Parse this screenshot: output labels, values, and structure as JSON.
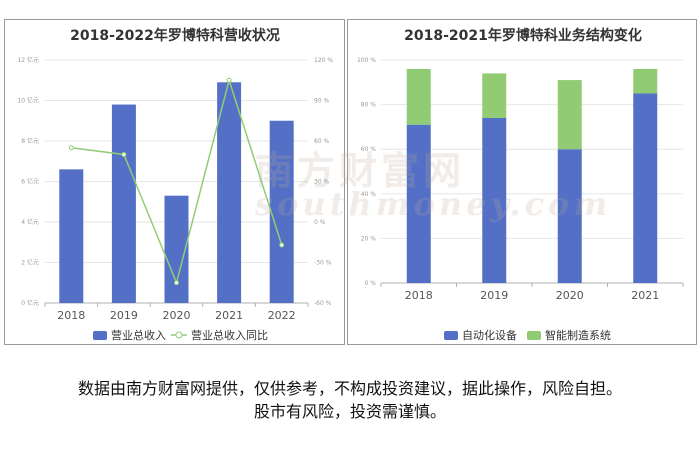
{
  "chart_data": [
    {
      "type": "bar",
      "title": "2018-2022年罗博特科营收状况",
      "categories": [
        "2018",
        "2019",
        "2020",
        "2021",
        "2022"
      ],
      "series": [
        {
          "name": "营业总收入",
          "values": [
            6.6,
            9.8,
            5.3,
            10.9,
            9.0
          ],
          "axis": "left",
          "kind": "bar"
        },
        {
          "name": "营业总收入同比",
          "values": [
            55,
            50,
            -45,
            105,
            -17
          ],
          "axis": "right",
          "kind": "line"
        }
      ],
      "y_left": {
        "ticks": [
          "0 亿元",
          "2 亿元",
          "4 亿元",
          "6 亿元",
          "8 亿元",
          "10 亿元",
          "12 亿元"
        ],
        "ylim": [
          0,
          12
        ]
      },
      "y_right": {
        "ticks": [
          "-60 %",
          "-30 %",
          "0 %",
          "30 %",
          "60 %",
          "90 %",
          "120 %"
        ],
        "ylim": [
          -60,
          120
        ]
      },
      "grid": true,
      "legend": "bottom",
      "colors": {
        "bar": "#5470c6",
        "line": "#91cc75"
      }
    },
    {
      "type": "bar",
      "stacked": true,
      "title": "2018-2021年罗博特科业务结构变化",
      "categories": [
        "2018",
        "2019",
        "2020",
        "2021"
      ],
      "series": [
        {
          "name": "自动化设备",
          "values": [
            71,
            74,
            60,
            85
          ]
        },
        {
          "name": "智能制造系统",
          "values": [
            25,
            20,
            31,
            11
          ]
        }
      ],
      "y": {
        "ticks": [
          "0 %",
          "20 %",
          "40 %",
          "60 %",
          "80 %",
          "100 %"
        ],
        "ylim": [
          0,
          100
        ]
      },
      "grid": true,
      "legend": "bottom",
      "colors": {
        "s1": "#5470c6",
        "s2": "#91cc75"
      }
    }
  ],
  "watermark": {
    "line1": "南方财富网",
    "line2": "southmoney.com"
  },
  "disclaimer": {
    "line1": "数据由南方财富网提供，仅供参考，不构成投资建议，据此操作，风险自担。",
    "line2": "股市有风险，投资需谨慎。"
  }
}
